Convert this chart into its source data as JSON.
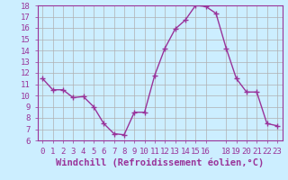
{
  "x": [
    0,
    1,
    2,
    3,
    4,
    5,
    6,
    7,
    8,
    9,
    10,
    11,
    12,
    13,
    14,
    15,
    16,
    17,
    18,
    19,
    20,
    21,
    22,
    23
  ],
  "y": [
    11.5,
    10.5,
    10.5,
    9.8,
    9.9,
    9.0,
    7.5,
    6.6,
    6.5,
    8.5,
    8.5,
    11.8,
    14.2,
    15.9,
    16.7,
    18.0,
    17.9,
    17.3,
    14.2,
    11.5,
    10.3,
    10.3,
    7.5,
    7.3
  ],
  "line_color": "#993399",
  "marker": "+",
  "marker_size": 4,
  "bg_color": "#cceeff",
  "grid_color": "#b0b0b0",
  "xlabel": "Windchill (Refroidissement éolien,°C)",
  "xlabel_color": "#993399",
  "tick_color": "#993399",
  "ylim": [
    6,
    18
  ],
  "xlim": [
    -0.5,
    23.5
  ],
  "yticks": [
    6,
    7,
    8,
    9,
    10,
    11,
    12,
    13,
    14,
    15,
    16,
    17,
    18
  ],
  "xtick_positions": [
    0,
    1,
    2,
    3,
    4,
    5,
    6,
    7,
    8,
    9,
    10,
    11,
    12,
    13,
    14,
    15,
    16,
    18,
    19,
    20,
    21,
    22,
    23
  ],
  "xtick_labels": [
    "0",
    "1",
    "2",
    "3",
    "4",
    "5",
    "6",
    "7",
    "8",
    "9",
    "10",
    "11",
    "12",
    "13",
    "14",
    "15",
    "16",
    "18",
    "19",
    "20",
    "21",
    "22",
    "23"
  ],
  "font_size": 6.5,
  "xlabel_font_size": 7.5,
  "line_width": 1.0,
  "markeredgewidth": 1.0
}
